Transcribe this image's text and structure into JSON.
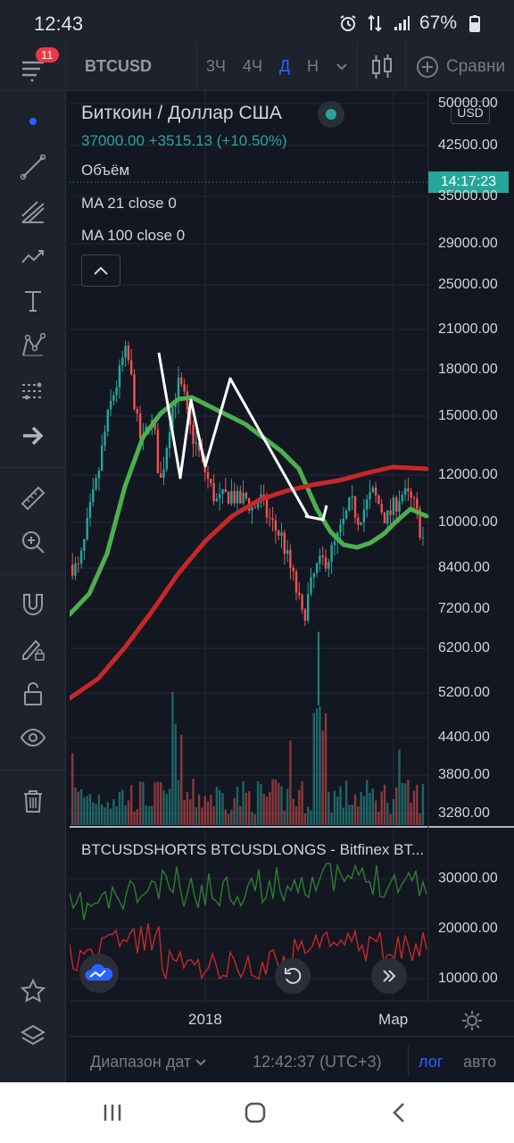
{
  "status": {
    "time": "12:43",
    "battery": "67%"
  },
  "toolbar": {
    "badge": "11",
    "symbol": "BTCUSD",
    "timeframes": [
      "3Ч",
      "4Ч",
      "Д",
      "Н"
    ],
    "compare": "Сравни"
  },
  "legend": {
    "title": "Биткоин / Доллар США",
    "price": "37000.00",
    "change": "+3515.13 (+10.50%)",
    "volume": "Объём",
    "ma21": "MA 21 close 0",
    "ma100": "MA 100 close 0"
  },
  "price_axis": {
    "currency": "USD",
    "countdown": "14:17:23",
    "labels": [
      "50000.00",
      "42500.00",
      "35000.00",
      "29000.00",
      "25000.00",
      "21000.00",
      "18000.00",
      "15000.00",
      "12000.00",
      "10000.00",
      "8400.00",
      "7200.00",
      "6200.00",
      "5200.00",
      "4400.00",
      "3800.00",
      "3280.00"
    ]
  },
  "indicator": {
    "label": "BTCUSDSHORTS BTCUSDLONGS - Bitfinex BT...",
    "axis_labels": [
      "30000.00",
      "20000.00",
      "10000.00"
    ]
  },
  "time_axis": {
    "labels": [
      "2018",
      "Мар"
    ]
  },
  "bottom": {
    "range": "Диапазон дат",
    "clock": "12:42:37 (UTC+3)",
    "log": "лог",
    "auto": "авто"
  },
  "colors": {
    "up": "#26a69a",
    "down": "#ef5350",
    "ma21": "#4caf50",
    "ma100": "#c62828",
    "accent": "#2962ff",
    "bg": "#131722"
  },
  "sidebar_icons": [
    "crosshair-dot-icon",
    "trend-line-icon",
    "fib-icon",
    "path-icon",
    "text-icon",
    "pattern-icon",
    "forecast-icon",
    "arrow-icon",
    "ruler-icon",
    "zoom-in-icon",
    "magnet-icon",
    "lock-pencil-icon",
    "lock-icon",
    "eye-icon",
    "trash-icon",
    "star-icon",
    "layers-icon"
  ]
}
